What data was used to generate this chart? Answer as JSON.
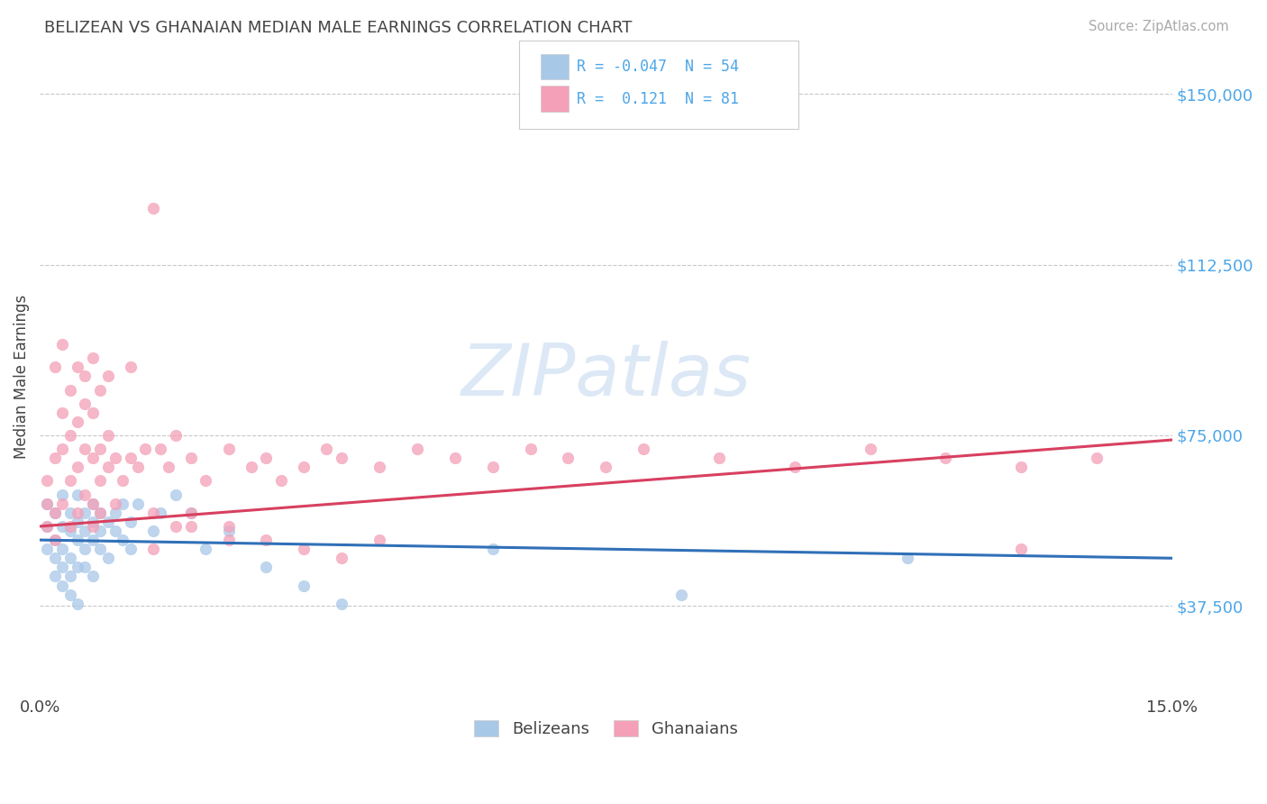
{
  "title": "BELIZEAN VS GHANAIAN MEDIAN MALE EARNINGS CORRELATION CHART",
  "source": "Source: ZipAtlas.com",
  "ylabel": "Median Male Earnings",
  "xlim": [
    0.0,
    0.15
  ],
  "ylim": [
    18000,
    158000
  ],
  "yticks": [
    37500,
    75000,
    112500,
    150000
  ],
  "ytick_labels": [
    "$37,500",
    "$75,000",
    "$112,500",
    "$150,000"
  ],
  "xtick_labels": [
    "0.0%",
    "15.0%"
  ],
  "bg_color": "#ffffff",
  "grid_color": "#c8c8c8",
  "blue_dot_color": "#a8c8e8",
  "pink_dot_color": "#f4a0b8",
  "blue_line_color": "#3070b8",
  "pink_line_color": "#d84060",
  "axis_label_color": "#4da6e8",
  "text_color": "#444444",
  "source_color": "#aaaaaa",
  "watermark_text": "ZIPatlas",
  "watermark_color": "#dce8f5",
  "legend_border_color": "#cccccc",
  "belizean_R": -0.047,
  "belizean_N": 54,
  "ghanaian_R": 0.121,
  "ghanaian_N": 81,
  "blue_trend_x0": 0.0,
  "blue_trend_y0": 52000,
  "blue_trend_x1": 0.15,
  "blue_trend_y1": 48000,
  "pink_trend_x0": 0.0,
  "pink_trend_y0": 55000,
  "pink_trend_x1": 0.15,
  "pink_trend_y1": 74000,
  "blue_x": [
    0.001,
    0.001,
    0.001,
    0.002,
    0.002,
    0.002,
    0.002,
    0.003,
    0.003,
    0.003,
    0.003,
    0.003,
    0.004,
    0.004,
    0.004,
    0.004,
    0.004,
    0.005,
    0.005,
    0.005,
    0.005,
    0.005,
    0.006,
    0.006,
    0.006,
    0.006,
    0.007,
    0.007,
    0.007,
    0.007,
    0.008,
    0.008,
    0.008,
    0.009,
    0.009,
    0.01,
    0.01,
    0.011,
    0.011,
    0.012,
    0.012,
    0.013,
    0.015,
    0.016,
    0.018,
    0.02,
    0.022,
    0.025,
    0.03,
    0.035,
    0.04,
    0.06,
    0.085,
    0.115
  ],
  "blue_y": [
    55000,
    60000,
    50000,
    52000,
    58000,
    48000,
    44000,
    55000,
    50000,
    46000,
    62000,
    42000,
    54000,
    48000,
    58000,
    44000,
    40000,
    56000,
    52000,
    46000,
    62000,
    38000,
    58000,
    54000,
    50000,
    46000,
    60000,
    56000,
    52000,
    44000,
    58000,
    54000,
    50000,
    56000,
    48000,
    58000,
    54000,
    60000,
    52000,
    56000,
    50000,
    60000,
    54000,
    58000,
    62000,
    58000,
    50000,
    54000,
    46000,
    42000,
    38000,
    50000,
    40000,
    48000
  ],
  "pink_x": [
    0.001,
    0.001,
    0.001,
    0.002,
    0.002,
    0.002,
    0.003,
    0.003,
    0.003,
    0.004,
    0.004,
    0.004,
    0.005,
    0.005,
    0.005,
    0.006,
    0.006,
    0.006,
    0.007,
    0.007,
    0.007,
    0.007,
    0.008,
    0.008,
    0.008,
    0.009,
    0.009,
    0.01,
    0.01,
    0.011,
    0.012,
    0.013,
    0.014,
    0.015,
    0.016,
    0.017,
    0.018,
    0.02,
    0.022,
    0.025,
    0.028,
    0.03,
    0.032,
    0.035,
    0.038,
    0.04,
    0.045,
    0.05,
    0.055,
    0.06,
    0.065,
    0.07,
    0.075,
    0.08,
    0.09,
    0.1,
    0.11,
    0.12,
    0.13,
    0.14,
    0.002,
    0.003,
    0.004,
    0.005,
    0.006,
    0.007,
    0.008,
    0.009,
    0.012,
    0.015,
    0.018,
    0.02,
    0.025,
    0.03,
    0.015,
    0.02,
    0.025,
    0.035,
    0.04,
    0.045,
    0.13
  ],
  "pink_y": [
    60000,
    55000,
    65000,
    58000,
    70000,
    52000,
    72000,
    60000,
    80000,
    65000,
    55000,
    75000,
    68000,
    58000,
    78000,
    72000,
    62000,
    82000,
    70000,
    60000,
    80000,
    55000,
    72000,
    65000,
    58000,
    68000,
    75000,
    70000,
    60000,
    65000,
    70000,
    68000,
    72000,
    125000,
    72000,
    68000,
    75000,
    70000,
    65000,
    72000,
    68000,
    70000,
    65000,
    68000,
    72000,
    70000,
    68000,
    72000,
    70000,
    68000,
    72000,
    70000,
    68000,
    72000,
    70000,
    68000,
    72000,
    70000,
    68000,
    70000,
    90000,
    95000,
    85000,
    90000,
    88000,
    92000,
    85000,
    88000,
    90000,
    58000,
    55000,
    58000,
    55000,
    52000,
    50000,
    55000,
    52000,
    50000,
    48000,
    52000,
    50000
  ]
}
